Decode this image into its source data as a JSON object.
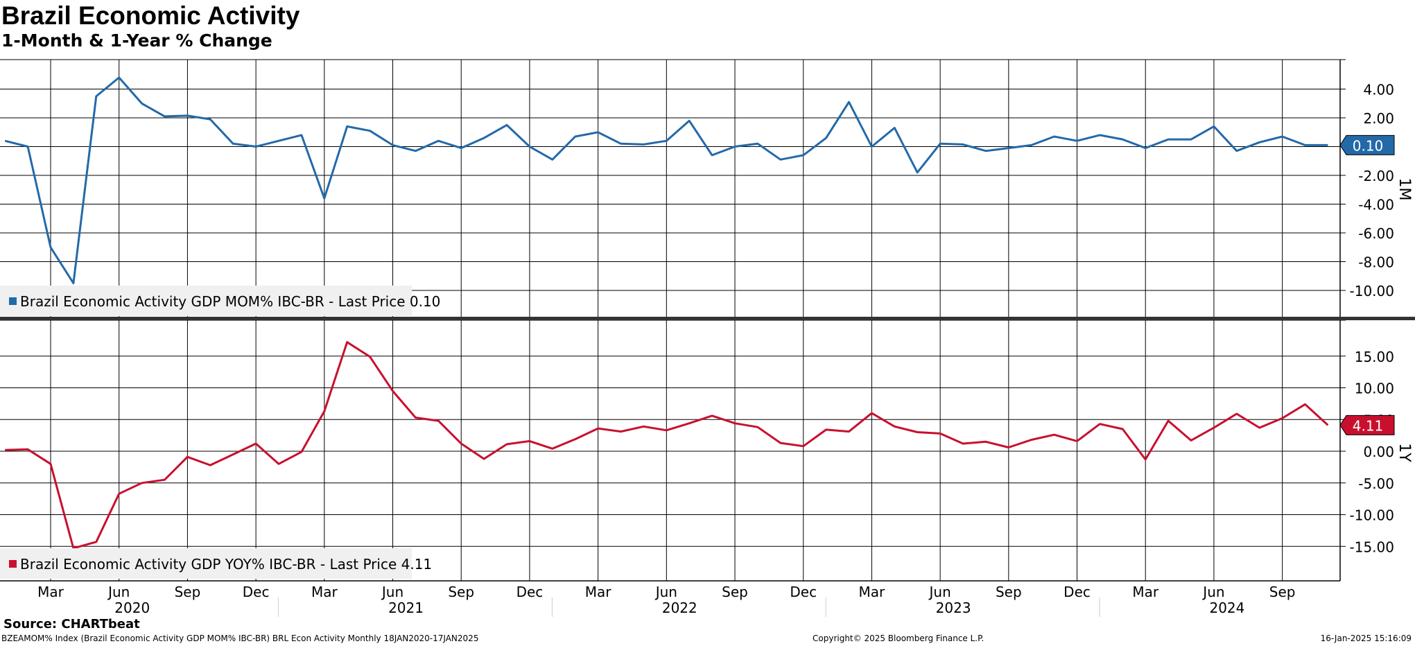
{
  "header": {
    "title": "Brazil Economic Activity",
    "subtitle": "1-Month & 1-Year % Change"
  },
  "footer": {
    "source": "Source: CHARTbeat",
    "ticker_info": "BZEAMOM% Index (Brazil Economic Activity GDP MOM% IBC-BR) BRL Econ Activity  Monthly 18JAN2020-17JAN2025",
    "copyright": "Copyright© 2025 Bloomberg Finance L.P.",
    "timestamp": "16-Jan-2025 15:16:09"
  },
  "chart_data": [
    {
      "type": "line",
      "panel_label": "1M",
      "legend": "Brazil Economic Activity GDP MOM% IBC-BR - Last Price 0.10",
      "color": "#2369a8",
      "ylim": [
        -12.5,
        6.0
      ],
      "yticks": [
        4.0,
        2.0,
        0.0,
        -2.0,
        -4.0,
        -6.0,
        -8.0,
        -10.0
      ],
      "ytick_labels": [
        "4.00",
        "2.00",
        "",
        "-2.00",
        "-4.00",
        "-6.00",
        "-8.00",
        "-10.00"
      ],
      "grid": true,
      "legend_position": "bottom-left",
      "last_value_label": "0.10",
      "x": [
        "2020-01",
        "2020-02",
        "2020-03",
        "2020-04",
        "2020-05",
        "2020-06",
        "2020-07",
        "2020-08",
        "2020-09",
        "2020-10",
        "2020-11",
        "2020-12",
        "2021-01",
        "2021-02",
        "2021-03",
        "2021-04",
        "2021-05",
        "2021-06",
        "2021-07",
        "2021-08",
        "2021-09",
        "2021-10",
        "2021-11",
        "2021-12",
        "2022-01",
        "2022-02",
        "2022-03",
        "2022-04",
        "2022-05",
        "2022-06",
        "2022-07",
        "2022-08",
        "2022-09",
        "2022-10",
        "2022-11",
        "2022-12",
        "2023-01",
        "2023-02",
        "2023-03",
        "2023-04",
        "2023-05",
        "2023-06",
        "2023-07",
        "2023-08",
        "2023-09",
        "2023-10",
        "2023-11",
        "2023-12",
        "2024-01",
        "2024-02",
        "2024-03",
        "2024-04",
        "2024-05",
        "2024-06",
        "2024-07",
        "2024-08",
        "2024-09",
        "2024-10",
        "2024-11"
      ],
      "values": [
        0.4,
        0.0,
        -7.0,
        -9.5,
        3.5,
        4.8,
        3.0,
        2.1,
        2.15,
        1.9,
        0.2,
        0.0,
        0.4,
        0.8,
        -3.6,
        1.4,
        1.1,
        0.1,
        -0.3,
        0.4,
        -0.1,
        0.6,
        1.5,
        0.0,
        -0.9,
        0.7,
        1.0,
        0.2,
        0.15,
        0.4,
        1.8,
        -0.6,
        0.0,
        0.2,
        -0.9,
        -0.6,
        0.6,
        3.1,
        0.0,
        1.3,
        -1.8,
        0.2,
        0.15,
        -0.3,
        -0.1,
        0.1,
        0.7,
        0.4,
        0.8,
        0.5,
        -0.1,
        0.5,
        0.5,
        1.4,
        -0.3,
        0.3,
        0.7,
        0.1,
        0.1
      ]
    },
    {
      "type": "line",
      "panel_label": "1Y",
      "legend": "Brazil Economic Activity GDP YOY% IBC-BR - Last Price 4.11",
      "color": "#c8102e",
      "ylim": [
        -20.0,
        19.5
      ],
      "yticks": [
        15.0,
        10.0,
        5.0,
        0.0,
        -5.0,
        -10.0,
        -15.0
      ],
      "ytick_labels": [
        "15.00",
        "10.00",
        "5.00",
        "0.00",
        "-5.00",
        "-10.00",
        "-15.00"
      ],
      "grid": true,
      "legend_position": "bottom-left",
      "last_value_label": "4.11",
      "x": [
        "2020-01",
        "2020-02",
        "2020-03",
        "2020-04",
        "2020-05",
        "2020-06",
        "2020-07",
        "2020-08",
        "2020-09",
        "2020-10",
        "2020-11",
        "2020-12",
        "2021-01",
        "2021-02",
        "2021-03",
        "2021-04",
        "2021-05",
        "2021-06",
        "2021-07",
        "2021-08",
        "2021-09",
        "2021-10",
        "2021-11",
        "2021-12",
        "2022-01",
        "2022-02",
        "2022-03",
        "2022-04",
        "2022-05",
        "2022-06",
        "2022-07",
        "2022-08",
        "2022-09",
        "2022-10",
        "2022-11",
        "2022-12",
        "2023-01",
        "2023-02",
        "2023-03",
        "2023-04",
        "2023-05",
        "2023-06",
        "2023-07",
        "2023-08",
        "2023-09",
        "2023-10",
        "2023-11",
        "2023-12",
        "2024-01",
        "2024-02",
        "2024-03",
        "2024-04",
        "2024-05",
        "2024-06",
        "2024-07",
        "2024-08",
        "2024-09",
        "2024-10",
        "2024-11"
      ],
      "values": [
        0.2,
        0.3,
        -2.0,
        -15.3,
        -14.3,
        -6.7,
        -5.0,
        -4.5,
        -0.9,
        -2.2,
        -0.5,
        1.2,
        -2.0,
        -0.1,
        6.3,
        17.2,
        14.9,
        9.5,
        5.3,
        4.8,
        1.2,
        -1.2,
        1.1,
        1.6,
        0.4,
        1.9,
        3.6,
        3.1,
        3.9,
        3.3,
        4.4,
        5.6,
        4.4,
        3.8,
        1.3,
        0.8,
        3.4,
        3.1,
        6.0,
        3.9,
        3.0,
        2.8,
        1.2,
        1.5,
        0.6,
        1.8,
        2.6,
        1.6,
        4.3,
        3.5,
        -1.3,
        4.8,
        1.7,
        3.7,
        5.9,
        3.7,
        5.2,
        7.4,
        4.11
      ]
    }
  ],
  "x_axis": {
    "month_labels": [
      "Mar",
      "Jun",
      "Sep",
      "Dec",
      "Mar",
      "Jun",
      "Sep",
      "Dec",
      "Mar",
      "Jun",
      "Sep",
      "Dec",
      "Mar",
      "Jun",
      "Sep",
      "Dec",
      "Mar",
      "Jun",
      "Sep"
    ],
    "month_label_x": [
      "2020-03",
      "2020-06",
      "2020-09",
      "2020-12",
      "2021-03",
      "2021-06",
      "2021-09",
      "2021-12",
      "2022-03",
      "2022-06",
      "2022-09",
      "2022-12",
      "2023-03",
      "2023-06",
      "2023-09",
      "2023-12",
      "2024-03",
      "2024-06",
      "2024-09"
    ],
    "year_labels": [
      "2020",
      "2021",
      "2022",
      "2023",
      "2024"
    ],
    "year_label_x": [
      "2020-06",
      "2021-06",
      "2022-06",
      "2023-06",
      "2024-06"
    ]
  }
}
